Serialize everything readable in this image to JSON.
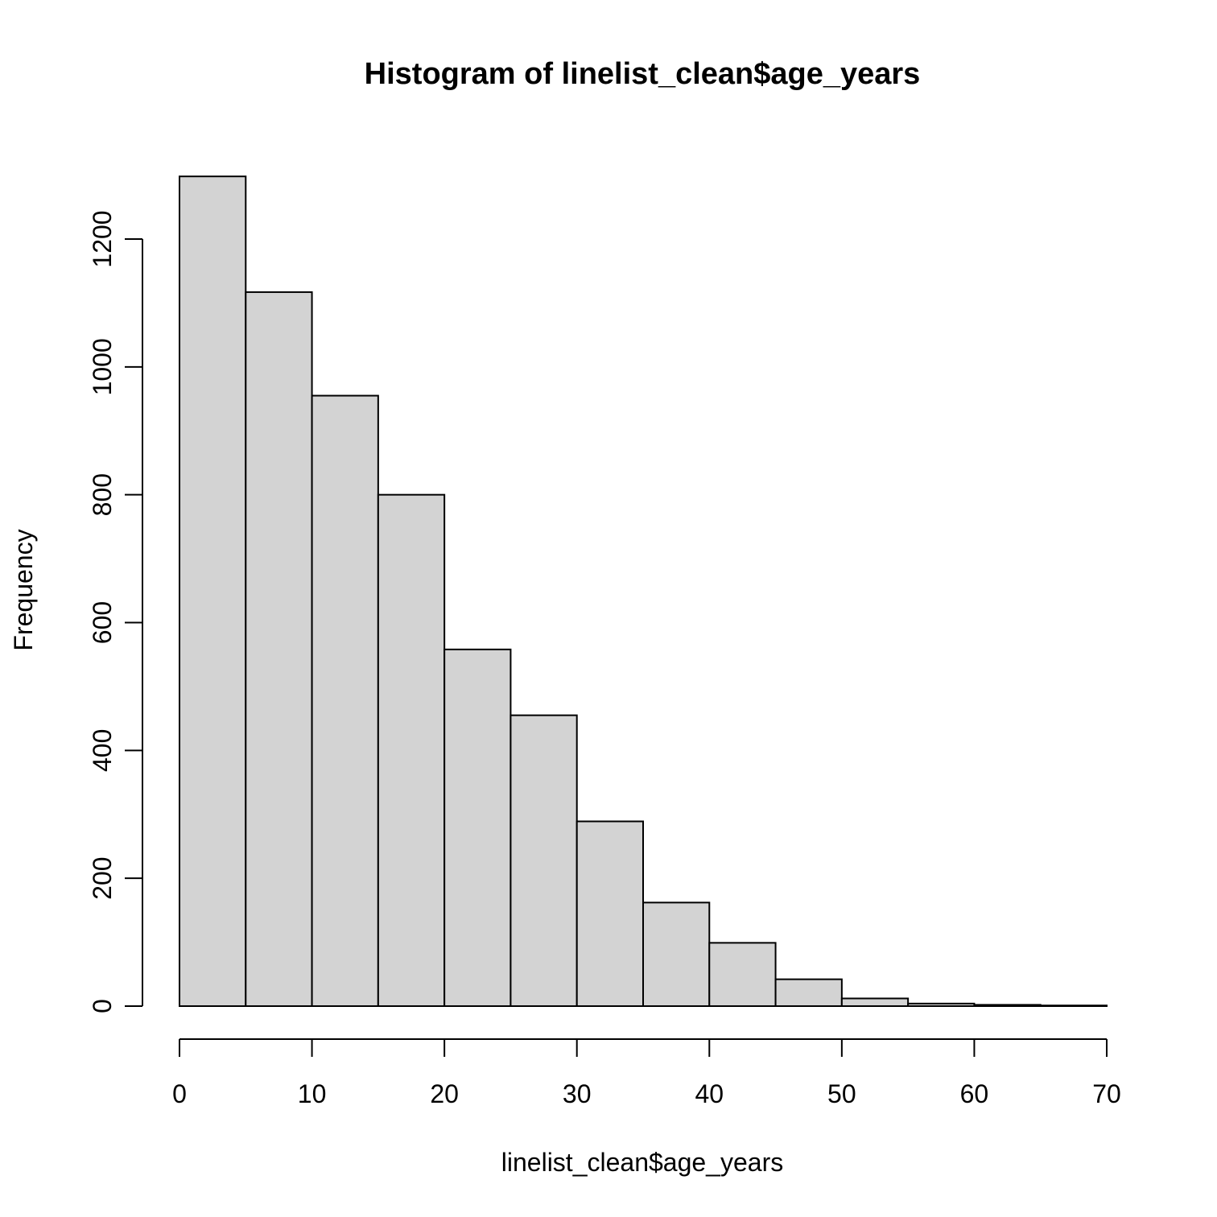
{
  "chart_data": {
    "type": "bar",
    "title": "Histogram of linelist_clean$age_years",
    "xlabel": "linelist_clean$age_years",
    "ylabel": "Frequency",
    "bins": [
      {
        "start": 0,
        "end": 5,
        "count": 1298
      },
      {
        "start": 5,
        "end": 10,
        "count": 1117
      },
      {
        "start": 10,
        "end": 15,
        "count": 955
      },
      {
        "start": 15,
        "end": 20,
        "count": 800
      },
      {
        "start": 20,
        "end": 25,
        "count": 558
      },
      {
        "start": 25,
        "end": 30,
        "count": 455
      },
      {
        "start": 30,
        "end": 35,
        "count": 289
      },
      {
        "start": 35,
        "end": 40,
        "count": 162
      },
      {
        "start": 40,
        "end": 45,
        "count": 99
      },
      {
        "start": 45,
        "end": 50,
        "count": 42
      },
      {
        "start": 50,
        "end": 55,
        "count": 12
      },
      {
        "start": 55,
        "end": 60,
        "count": 4
      },
      {
        "start": 60,
        "end": 65,
        "count": 2
      },
      {
        "start": 65,
        "end": 70,
        "count": 1
      }
    ],
    "xlim": [
      0,
      70
    ],
    "ylim": [
      0,
      1300
    ],
    "x_ticks": [
      "0",
      "10",
      "20",
      "30",
      "40",
      "50",
      "60",
      "70"
    ],
    "y_ticks": [
      "0",
      "200",
      "400",
      "600",
      "800",
      "1000",
      "1200"
    ],
    "bar_color": "#d3d3d3",
    "border_color": "#000000",
    "grid": false
  }
}
